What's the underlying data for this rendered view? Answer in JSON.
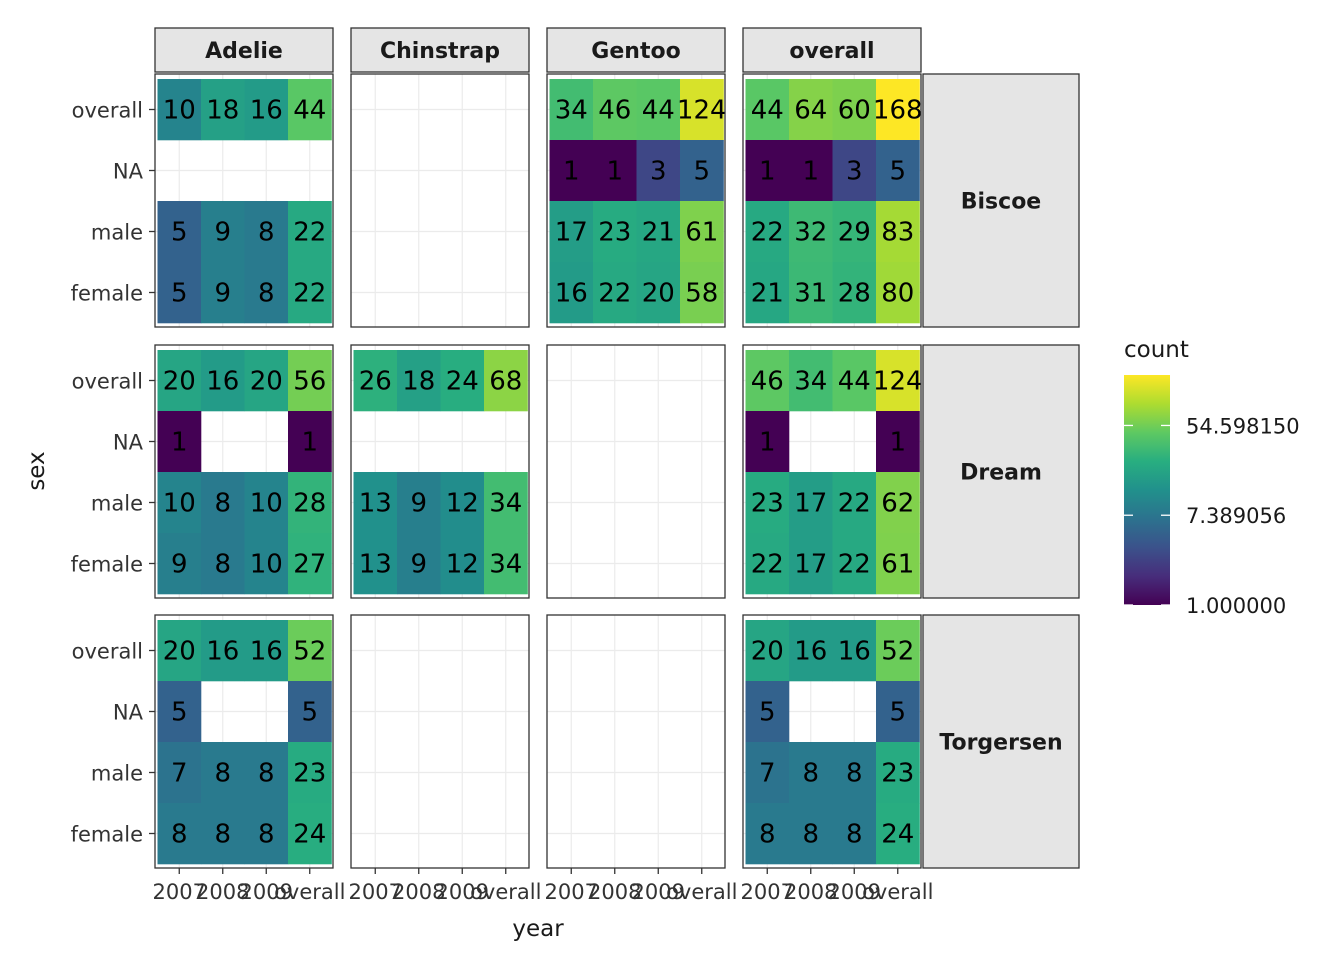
{
  "chart_data": {
    "type": "heatmap",
    "xlabel": "year",
    "ylabel": "sex",
    "x_categories": [
      "2007",
      "2008",
      "2009",
      "overall"
    ],
    "x_tick_labels": [
      "2007",
      "2008",
      "2009",
      "overall"
    ],
    "y_categories": [
      "female",
      "male",
      "NA",
      "overall"
    ],
    "col_facets": [
      "Adelie",
      "Chinstrap",
      "Gentoo",
      "overall"
    ],
    "row_facets": [
      "Biscoe",
      "Dream",
      "Torgersen"
    ],
    "color_scale": "viridis",
    "color_transform": "log",
    "legend": {
      "title": "count",
      "placement": "right",
      "breaks": [
        1,
        7.389056,
        54.59815
      ],
      "labels": [
        "1.000000",
        "7.389056",
        "54.598150"
      ],
      "limits": [
        1,
        168
      ]
    },
    "panels": [
      {
        "row": "Biscoe",
        "col": "Adelie",
        "cells": {
          "overall": [
            10,
            18,
            16,
            44
          ],
          "NA": [
            null,
            null,
            null,
            null
          ],
          "male": [
            5,
            9,
            8,
            22
          ],
          "female": [
            5,
            9,
            8,
            22
          ]
        }
      },
      {
        "row": "Biscoe",
        "col": "Chinstrap",
        "cells": {}
      },
      {
        "row": "Biscoe",
        "col": "Gentoo",
        "cells": {
          "overall": [
            34,
            46,
            44,
            124
          ],
          "NA": [
            1,
            1,
            3,
            5
          ],
          "male": [
            17,
            23,
            21,
            61
          ],
          "female": [
            16,
            22,
            20,
            58
          ]
        }
      },
      {
        "row": "Biscoe",
        "col": "overall",
        "cells": {
          "overall": [
            44,
            64,
            60,
            168
          ],
          "NA": [
            1,
            1,
            3,
            5
          ],
          "male": [
            22,
            32,
            29,
            83
          ],
          "female": [
            21,
            31,
            28,
            80
          ]
        }
      },
      {
        "row": "Dream",
        "col": "Adelie",
        "cells": {
          "overall": [
            20,
            16,
            20,
            56
          ],
          "NA": [
            1,
            null,
            null,
            1
          ],
          "male": [
            10,
            8,
            10,
            28
          ],
          "female": [
            9,
            8,
            10,
            27
          ]
        }
      },
      {
        "row": "Dream",
        "col": "Chinstrap",
        "cells": {
          "overall": [
            26,
            18,
            24,
            68
          ],
          "NA": [
            null,
            null,
            null,
            null
          ],
          "male": [
            13,
            9,
            12,
            34
          ],
          "female": [
            13,
            9,
            12,
            34
          ]
        }
      },
      {
        "row": "Dream",
        "col": "Gentoo",
        "cells": {}
      },
      {
        "row": "Dream",
        "col": "overall",
        "cells": {
          "overall": [
            46,
            34,
            44,
            124
          ],
          "NA": [
            1,
            null,
            null,
            1
          ],
          "male": [
            23,
            17,
            22,
            62
          ],
          "female": [
            22,
            17,
            22,
            61
          ]
        }
      },
      {
        "row": "Torgersen",
        "col": "Adelie",
        "cells": {
          "overall": [
            20,
            16,
            16,
            52
          ],
          "NA": [
            5,
            null,
            null,
            5
          ],
          "male": [
            7,
            8,
            8,
            23
          ],
          "female": [
            8,
            8,
            8,
            24
          ]
        }
      },
      {
        "row": "Torgersen",
        "col": "Chinstrap",
        "cells": {}
      },
      {
        "row": "Torgersen",
        "col": "Gentoo",
        "cells": {}
      },
      {
        "row": "Torgersen",
        "col": "overall",
        "cells": {
          "overall": [
            20,
            16,
            16,
            52
          ],
          "NA": [
            5,
            null,
            null,
            5
          ],
          "male": [
            7,
            8,
            8,
            23
          ],
          "female": [
            8,
            8,
            8,
            24
          ]
        }
      }
    ]
  }
}
